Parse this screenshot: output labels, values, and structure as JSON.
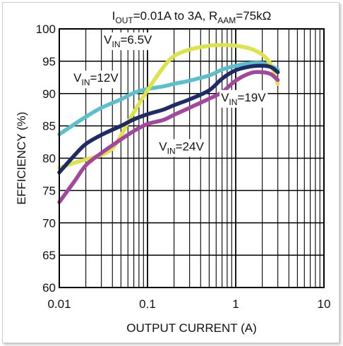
{
  "chart_data": {
    "type": "line",
    "title": {
      "parts": [
        {
          "text": "I",
          "sub": false
        },
        {
          "text": "OUT",
          "sub": true
        },
        {
          "text": "=0.01A to 3A, R",
          "sub": false
        },
        {
          "text": "AAM",
          "sub": true
        },
        {
          "text": "=75kΩ",
          "sub": false
        }
      ]
    },
    "xlabel": "OUTPUT CURRENT (A)",
    "ylabel": "EFFICIENCY (%)",
    "xscale": "log",
    "xlim": [
      0.01,
      10
    ],
    "ylim": [
      60,
      100
    ],
    "x_ticks": [
      {
        "value": 0.01,
        "label": "0.01"
      },
      {
        "value": 0.1,
        "label": "0.1"
      },
      {
        "value": 1,
        "label": "1"
      },
      {
        "value": 10,
        "label": "10"
      }
    ],
    "y_ticks": [
      {
        "value": 60,
        "label": "60"
      },
      {
        "value": 65,
        "label": "65"
      },
      {
        "value": 70,
        "label": "70"
      },
      {
        "value": 75,
        "label": "75"
      },
      {
        "value": 80,
        "label": "80"
      },
      {
        "value": 85,
        "label": "85"
      },
      {
        "value": 90,
        "label": "90"
      },
      {
        "value": 95,
        "label": "95"
      },
      {
        "value": 100,
        "label": "100"
      }
    ],
    "grid": true,
    "legend": "none",
    "series": [
      {
        "name": "VIN=12V",
        "color": "#5bc0cc",
        "points": [
          [
            0.01,
            83.7
          ],
          [
            0.015,
            85.3
          ],
          [
            0.02,
            86.4
          ],
          [
            0.03,
            87.8
          ],
          [
            0.05,
            89.1
          ],
          [
            0.07,
            90.1
          ],
          [
            0.1,
            90.7
          ],
          [
            0.15,
            91.1
          ],
          [
            0.2,
            91.5
          ],
          [
            0.3,
            92.0
          ],
          [
            0.5,
            92.8
          ],
          [
            0.7,
            93.7
          ],
          [
            1.0,
            94.3
          ],
          [
            1.5,
            94.7
          ],
          [
            2.0,
            94.7
          ],
          [
            2.5,
            94.3
          ],
          [
            3.0,
            93.7
          ]
        ]
      },
      {
        "name": "VIN=6.5V",
        "color": "#dde34a",
        "points": [
          [
            0.01,
            78.5
          ],
          [
            0.015,
            79.3
          ],
          [
            0.02,
            79.8
          ],
          [
            0.03,
            80.5
          ],
          [
            0.04,
            81.5
          ],
          [
            0.05,
            83.5
          ],
          [
            0.06,
            85.5
          ],
          [
            0.07,
            87.1
          ],
          [
            0.1,
            90.5
          ],
          [
            0.15,
            94.0
          ],
          [
            0.2,
            95.8
          ],
          [
            0.3,
            96.8
          ],
          [
            0.5,
            97.4
          ],
          [
            0.7,
            97.5
          ],
          [
            1.0,
            97.4
          ],
          [
            1.5,
            96.9
          ],
          [
            2.0,
            96.0
          ],
          [
            2.5,
            94.5
          ],
          [
            3.0,
            91.5
          ]
        ]
      },
      {
        "name": "VIN=19V",
        "color": "#1f2a66",
        "points": [
          [
            0.01,
            77.8
          ],
          [
            0.015,
            80.5
          ],
          [
            0.02,
            82.2
          ],
          [
            0.03,
            83.6
          ],
          [
            0.05,
            85.0
          ],
          [
            0.07,
            86.0
          ],
          [
            0.1,
            86.8
          ],
          [
            0.15,
            87.5
          ],
          [
            0.2,
            88.2
          ],
          [
            0.3,
            89.1
          ],
          [
            0.5,
            90.5
          ],
          [
            0.7,
            92.3
          ],
          [
            1.0,
            93.6
          ],
          [
            1.5,
            94.2
          ],
          [
            2.0,
            94.3
          ],
          [
            2.5,
            94.1
          ],
          [
            3.0,
            93.3
          ]
        ]
      },
      {
        "name": "VIN=24V",
        "color": "#a3479e",
        "points": [
          [
            0.01,
            73.2
          ],
          [
            0.015,
            76.5
          ],
          [
            0.02,
            78.9
          ],
          [
            0.03,
            80.8
          ],
          [
            0.05,
            82.9
          ],
          [
            0.07,
            84.2
          ],
          [
            0.1,
            85.3
          ],
          [
            0.15,
            85.9
          ],
          [
            0.2,
            86.7
          ],
          [
            0.3,
            87.8
          ],
          [
            0.5,
            89.2
          ],
          [
            0.7,
            90.2
          ],
          [
            1.0,
            92.0
          ],
          [
            1.5,
            93.2
          ],
          [
            2.0,
            93.3
          ],
          [
            2.5,
            93.0
          ],
          [
            3.0,
            92.1
          ]
        ]
      }
    ],
    "annotations": [
      {
        "id": "vin-6v5",
        "parts": [
          {
            "text": "V",
            "sub": false
          },
          {
            "text": "IN",
            "sub": true
          },
          {
            "text": "=6.5V",
            "sub": false
          }
        ],
        "x": 0.032,
        "y": 97.7
      },
      {
        "id": "vin-12v",
        "parts": [
          {
            "text": "V",
            "sub": false
          },
          {
            "text": "IN",
            "sub": true
          },
          {
            "text": "=12V",
            "sub": false
          }
        ],
        "x": 0.0145,
        "y": 91.8
      },
      {
        "id": "vin-19v",
        "parts": [
          {
            "text": "V",
            "sub": false
          },
          {
            "text": "IN",
            "sub": true
          },
          {
            "text": "=19V",
            "sub": false
          }
        ],
        "x": 0.68,
        "y": 88.8
      },
      {
        "id": "vin-24v",
        "parts": [
          {
            "text": "V",
            "sub": false
          },
          {
            "text": "IN",
            "sub": true
          },
          {
            "text": "=24V",
            "sub": false
          }
        ],
        "x": 0.135,
        "y": 81.2
      }
    ]
  }
}
